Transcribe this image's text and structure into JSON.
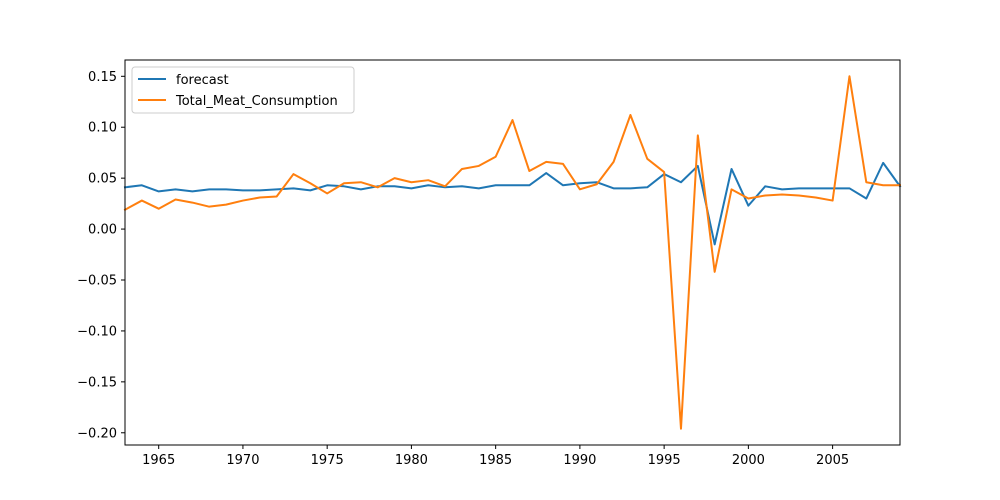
{
  "chart_data": {
    "type": "line",
    "title": "",
    "xlabel": "",
    "ylabel": "",
    "xlim": [
      1963,
      2009
    ],
    "ylim": [
      -0.212,
      0.166
    ],
    "x_ticks": [
      1965,
      1970,
      1975,
      1980,
      1985,
      1990,
      1995,
      2000,
      2005
    ],
    "y_ticks": [
      -0.2,
      -0.15,
      -0.1,
      -0.05,
      0.0,
      0.05,
      0.1,
      0.15
    ],
    "y_tick_labels": [
      "−0.20",
      "−0.15",
      "−0.10",
      "−0.05",
      "0.00",
      "0.05",
      "0.10",
      "0.15"
    ],
    "grid": false,
    "legend_position": "top-left",
    "x": [
      1963,
      1964,
      1965,
      1966,
      1967,
      1968,
      1969,
      1970,
      1971,
      1972,
      1973,
      1974,
      1975,
      1976,
      1977,
      1978,
      1979,
      1980,
      1981,
      1982,
      1983,
      1984,
      1985,
      1986,
      1987,
      1988,
      1989,
      1990,
      1991,
      1992,
      1993,
      1994,
      1995,
      1996,
      1997,
      1998,
      1999,
      2000,
      2001,
      2002,
      2003,
      2004,
      2005,
      2006,
      2007,
      2008,
      2009
    ],
    "series": [
      {
        "name": "forecast",
        "color": "#1f77b4",
        "values": [
          0.041,
          0.043,
          0.037,
          0.039,
          0.037,
          0.039,
          0.039,
          0.038,
          0.038,
          0.039,
          0.04,
          0.038,
          0.043,
          0.042,
          0.039,
          0.042,
          0.042,
          0.04,
          0.043,
          0.041,
          0.042,
          0.04,
          0.043,
          0.043,
          0.043,
          0.055,
          0.043,
          0.045,
          0.046,
          0.04,
          0.04,
          0.041,
          0.054,
          0.046,
          0.062,
          -0.015,
          0.059,
          0.023,
          0.042,
          0.039,
          0.04,
          0.04,
          0.04,
          0.04,
          0.03,
          0.065,
          0.042
        ]
      },
      {
        "name": "Total_Meat_Consumption",
        "color": "#ff7f0e",
        "values": [
          0.019,
          0.028,
          0.02,
          0.029,
          0.026,
          0.022,
          0.024,
          0.028,
          0.031,
          0.032,
          0.054,
          0.045,
          0.035,
          0.045,
          0.046,
          0.041,
          0.05,
          0.046,
          0.048,
          0.042,
          0.059,
          0.062,
          0.071,
          0.107,
          0.057,
          0.066,
          0.064,
          0.039,
          0.044,
          0.066,
          0.112,
          0.069,
          0.056,
          -0.196,
          0.092,
          -0.042,
          0.039,
          0.03,
          0.033,
          0.034,
          0.033,
          0.031,
          0.028,
          0.15,
          0.046,
          0.043,
          0.043
        ]
      }
    ]
  }
}
